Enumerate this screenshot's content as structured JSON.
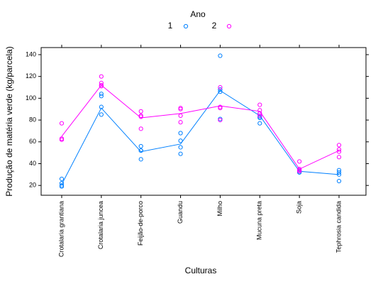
{
  "chart_data": {
    "type": "scatter",
    "legend_title": "Ano",
    "y_label": "Produção de matéria verde (kg/parcela)",
    "x_label": "Culturas",
    "categories": [
      "Crotalaria grantiana",
      "Crotalaria juncea",
      "Feijão-de-porco",
      "Guandu",
      "Milho",
      "Mucuna preta",
      "Soja",
      "Tephrosia candida"
    ],
    "series": [
      {
        "name": "1",
        "color": "#0080ff",
        "values": [
          [
            26,
            22,
            20,
            19
          ],
          [
            104,
            102,
            92,
            85
          ],
          [
            56,
            52,
            52,
            44
          ],
          [
            68,
            61,
            55,
            49
          ],
          [
            139,
            108,
            106,
            81
          ],
          [
            86,
            83,
            82,
            77
          ],
          [
            34,
            33,
            32,
            32
          ],
          [
            34,
            32,
            30,
            24
          ]
        ],
        "line_values": [
          21,
          91,
          51,
          58,
          107,
          84,
          33,
          30
        ]
      },
      {
        "name": "2",
        "color": "#ff00ff",
        "values": [
          [
            77,
            63,
            62,
            62
          ],
          [
            120,
            114,
            112,
            111
          ],
          [
            88,
            84,
            83,
            72
          ],
          [
            91,
            90,
            84,
            78
          ],
          [
            110,
            92,
            91,
            80
          ],
          [
            94,
            89,
            86,
            84
          ],
          [
            42,
            35,
            34,
            33
          ],
          [
            57,
            53,
            51,
            46
          ]
        ],
        "line_values": [
          65,
          112,
          82,
          86,
          93,
          88,
          35,
          52
        ]
      }
    ],
    "ylim": [
      11,
      146.5
    ],
    "yticks": [
      20,
      40,
      60,
      80,
      100,
      120,
      140
    ]
  }
}
